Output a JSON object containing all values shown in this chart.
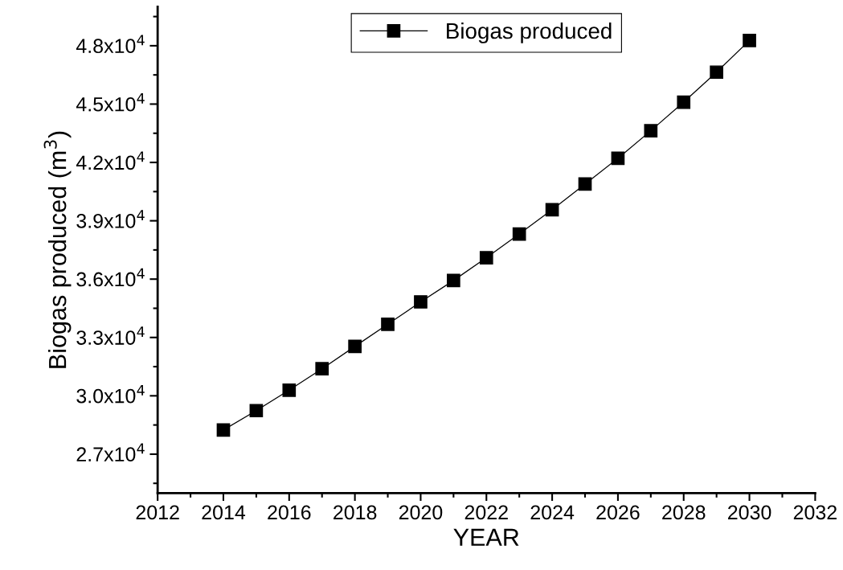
{
  "chart_data": {
    "type": "line",
    "xlabel": "YEAR",
    "ylabel": "Biogas produced (m$^{3}$)",
    "x": [
      2014,
      2015,
      2016,
      2017,
      2018,
      2019,
      2020,
      2021,
      2022,
      2023,
      2024,
      2025,
      2026,
      2027,
      2028,
      2029,
      2030
    ],
    "series": [
      {
        "name": "Biogas produced",
        "color": "#000000",
        "values": [
          28240,
          29240,
          30290,
          31390,
          32540,
          33680,
          34830,
          35930,
          37100,
          38320,
          39570,
          40890,
          42210,
          43630,
          45100,
          46640,
          48270
        ]
      }
    ],
    "xlim": [
      2012,
      2032
    ],
    "xticks": [
      2012,
      2014,
      2016,
      2018,
      2020,
      2022,
      2024,
      2026,
      2028,
      2030,
      2032
    ],
    "ylim": [
      25000,
      50000
    ],
    "yticks": [
      {
        "value": 27000,
        "label": "2.7x10$^{4}$"
      },
      {
        "value": 30000,
        "label": "3.0x10$^{4}$"
      },
      {
        "value": 33000,
        "label": "3.3x10$^{4}$"
      },
      {
        "value": 36000,
        "label": "3.6x10$^{4}$"
      },
      {
        "value": 39000,
        "label": "3.9x10$^{4}$"
      },
      {
        "value": 42000,
        "label": "4.2x10$^{4}$"
      },
      {
        "value": 45000,
        "label": "4.5x10$^{4}$"
      },
      {
        "value": 48000,
        "label": "4.8x10$^{4}$"
      }
    ],
    "grid": false,
    "legend": "top",
    "marker": "square",
    "line_style": "solid"
  }
}
